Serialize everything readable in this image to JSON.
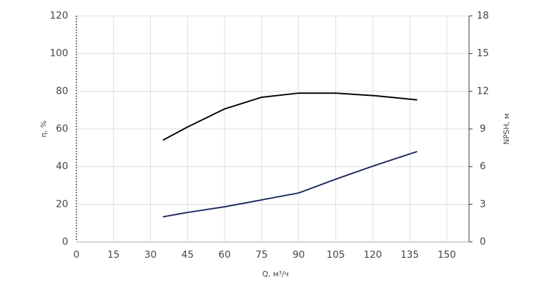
{
  "chart_data": {
    "type": "line",
    "x_label": "Q, м³/ч",
    "y_label": "η, %",
    "y2_label": "NPSH, м",
    "xlim": [
      0,
      159
    ],
    "xticks": [
      0,
      15,
      30,
      45,
      60,
      75,
      90,
      105,
      120,
      135,
      150
    ],
    "ylim": [
      0,
      120
    ],
    "yticks": [
      0,
      20,
      40,
      60,
      80,
      100,
      120
    ],
    "y2lim": [
      0,
      18
    ],
    "y2ticks": [
      0,
      3,
      6,
      9,
      12,
      15,
      18
    ],
    "grid": true,
    "series": [
      {
        "name": "η",
        "color": "#000000",
        "x": [
          35,
          45,
          60,
          75,
          90,
          105,
          121,
          138
        ],
        "values": [
          54,
          61,
          70.6,
          76.8,
          79,
          79,
          77.6,
          75.4
        ]
      },
      {
        "name": "NPSH",
        "color": "#1b2a5c",
        "axis": "y2",
        "x": [
          35,
          45,
          60,
          75,
          90,
          105,
          121,
          138
        ],
        "values": [
          2,
          2.35,
          2.8,
          3.35,
          3.9,
          5,
          6.1,
          7.2
        ]
      }
    ]
  }
}
